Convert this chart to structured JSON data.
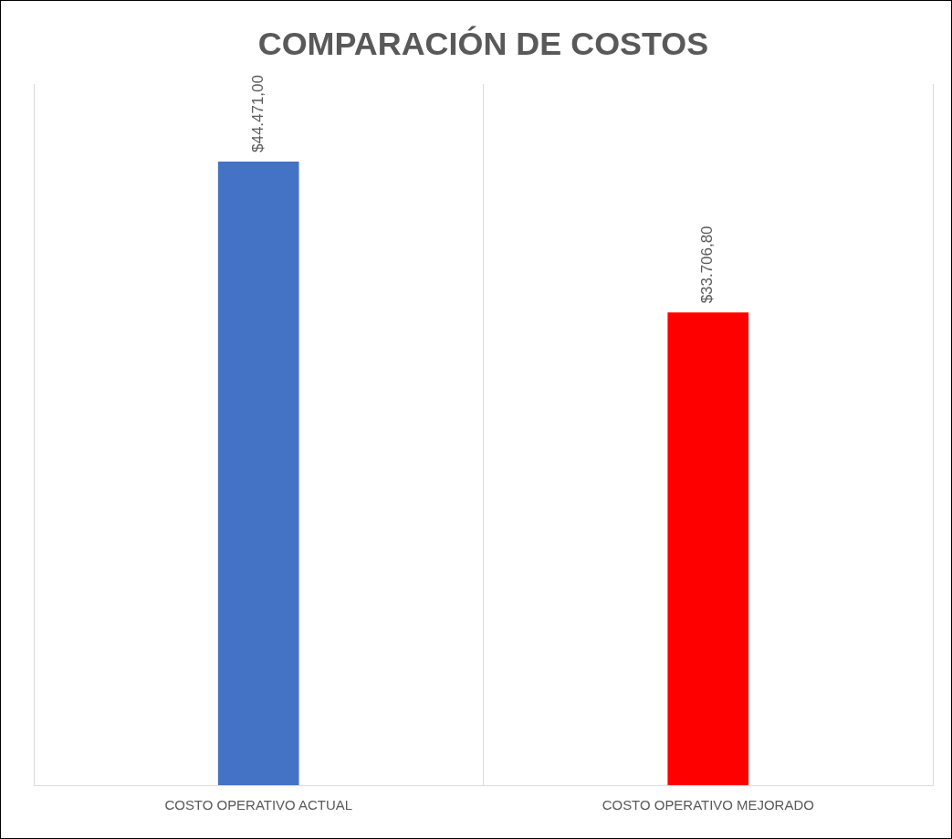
{
  "chart_data": {
    "type": "bar",
    "title": "COMPARACIÓN DE COSTOS",
    "categories": [
      "COSTO OPERATIVO ACTUAL",
      "COSTO OPERATIVO MEJORADO"
    ],
    "values": [
      44471.0,
      33706.8
    ],
    "colors": [
      "#4472c4",
      "#ff0000"
    ],
    "value_labels": [
      "$44.471,00",
      "$33.706,80"
    ],
    "grid": "x",
    "legend": false
  }
}
